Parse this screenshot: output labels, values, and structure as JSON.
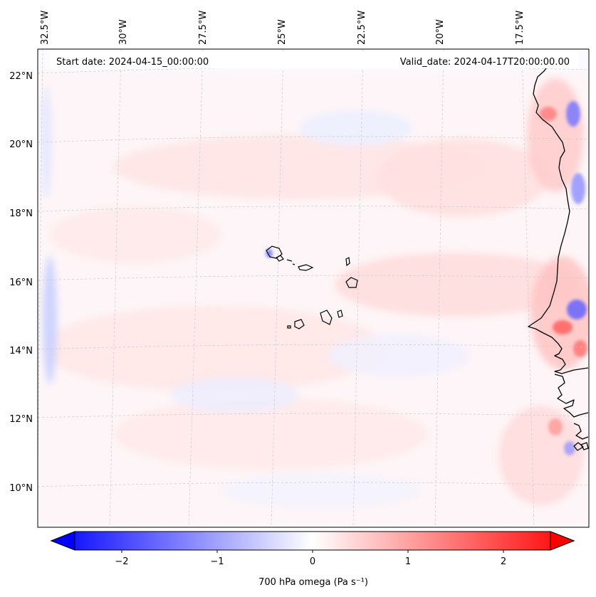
{
  "header": {
    "start_date": "Start date: 2024-04-15_00:00:00",
    "valid_date": "Valid_date: 2024-04-17T20:00:00.00"
  },
  "map": {
    "lon_labels": [
      "32.5°W",
      "30°W",
      "27.5°W",
      "25°W",
      "22.5°W",
      "20°W",
      "17.5°W"
    ],
    "lat_labels": [
      "22°N",
      "20°N",
      "18°N",
      "16°N",
      "14°N",
      "12°N",
      "10°N"
    ],
    "colormap": "bwr",
    "gridlines": "dashed light grey"
  },
  "colorbar": {
    "label": "700 hPa omega (Pa s⁻¹)",
    "ticks": [
      "−2",
      "−1",
      "0",
      "1",
      "2"
    ],
    "min_color": "#0000ff",
    "mid_color": "#ffffff",
    "max_color": "#ff0000",
    "extend": "both"
  }
}
